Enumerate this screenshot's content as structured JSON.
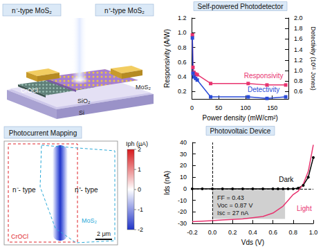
{
  "schematic": {
    "labels": {
      "left": "n⁻-type MoS₂",
      "right": "n⁺-type MoS₂"
    },
    "layers": {
      "crocl": "CrOCl",
      "mos2": "MoS₂",
      "sio2": "SiO₂",
      "si": "Si"
    }
  },
  "mapping": {
    "title": "Photocurrent Mapping",
    "colorbar": {
      "label": "Iph (µA)",
      "range": [
        -2,
        2
      ],
      "ticks": [
        -2,
        -1,
        0,
        1,
        2
      ]
    },
    "region_labels": {
      "left": "n⁻- type",
      "right": "n⁺- type",
      "mos2": "MoS₂",
      "crocl": "CrOCl"
    },
    "scale_bar": "2 μm"
  },
  "chart_data": [
    {
      "type": "line",
      "title": "Self-powered Photodetector",
      "x_label": "Power density (mW/cm²)",
      "y_label": "Responsivity (A/W)",
      "y2_label": "Detectivity (10¹¹ Jones)",
      "x": [
        1,
        2,
        4,
        7,
        10,
        35,
        105,
        140,
        175
      ],
      "series": [
        {
          "name": "Responsivity",
          "color": "#e8336f",
          "marker": "square",
          "values": [
            0.97,
            0.53,
            0.46,
            0.44,
            0.43,
            0.31,
            0.31,
            0.29,
            0.29
          ]
        },
        {
          "name": "Detectivity",
          "color": "#2a4bd7",
          "marker": "square",
          "axis": "y2",
          "values": [
            1.62,
            0.95,
            0.88,
            0.85,
            0.82,
            0.5,
            0.5,
            0.47,
            0.5
          ]
        }
      ],
      "xlim": [
        0,
        180
      ],
      "xticks": [
        0,
        50,
        100,
        150
      ],
      "ylim": [
        0.1,
        1.2
      ],
      "yticks": [
        0.2,
        0.4,
        0.6,
        0.8,
        {
          "value": 1,
          "label": "1.0"
        },
        1.2
      ],
      "y2lim": [
        0.46,
        2.0
      ],
      "y2ticks": [
        0.6,
        0.8,
        {
          "value": 1,
          "label": "1.0"
        },
        1.2,
        1.4,
        1.6,
        1.8,
        {
          "value": 2,
          "label": "2.0"
        }
      ],
      "grid": false
    },
    {
      "type": "line",
      "title": "Photovoltaic Device",
      "x_label": "Vds (V)",
      "y_label": "Ids (nA)",
      "x": [
        -0.2,
        -0.1,
        0,
        0.1,
        0.2,
        0.3,
        0.4,
        0.5,
        0.6,
        0.65,
        0.7,
        0.75,
        0.8,
        0.85,
        0.9,
        0.95,
        1.0
      ],
      "series": [
        {
          "name": "Dark",
          "color": "#000000",
          "marker": "circle",
          "values": [
            0,
            0,
            0,
            0,
            0,
            0,
            0,
            0,
            0,
            0,
            0,
            0,
            0,
            0.5,
            3,
            10,
            27
          ]
        },
        {
          "name": "Light",
          "color": "#e8336f",
          "marker": "none",
          "values": [
            -28.5,
            -28,
            -27.5,
            -27,
            -26.5,
            -26,
            -25,
            -24,
            -21,
            -18,
            -15,
            -10,
            -5,
            -2,
            4,
            15,
            38
          ]
        }
      ],
      "xlim": [
        -0.2,
        1.0
      ],
      "xticks": [
        -0.2,
        {
          "value": 0,
          "label": "0.0"
        },
        0.2,
        0.4,
        0.6,
        0.8,
        {
          "value": 1,
          "label": "1.0"
        }
      ],
      "ylim": [
        -30,
        40
      ],
      "yticks": [
        -30,
        -20,
        -10,
        0,
        10,
        20,
        30,
        40
      ],
      "annotations": [
        "FF = 0.43",
        "Voc = 0.87 V",
        "Isc = 27 nA"
      ],
      "shaded_region": {
        "x": [
          0,
          0.72
        ],
        "y": [
          -26,
          0
        ]
      },
      "reference_lines": {
        "x": 0,
        "y": 0
      },
      "grid": false
    }
  ]
}
